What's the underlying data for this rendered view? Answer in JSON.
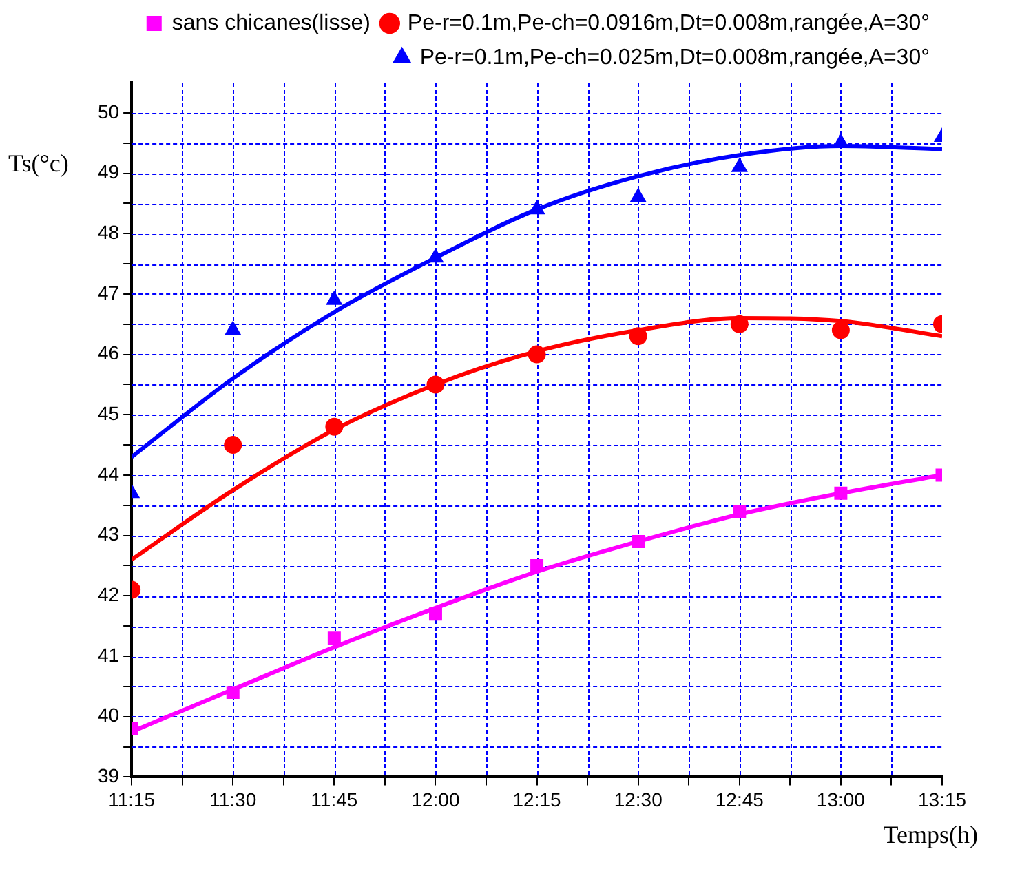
{
  "chart_data": {
    "type": "scatter",
    "xlabel": "Temps(h)",
    "ylabel": "Ts(°c)",
    "x": [
      11.25,
      11.5,
      11.75,
      12.0,
      12.25,
      12.5,
      12.75,
      13.0,
      13.25
    ],
    "xlim": [
      11.25,
      13.25
    ],
    "xticks": [
      {
        "value": 11.25,
        "label": "11:15"
      },
      {
        "value": 11.375,
        "label": null
      },
      {
        "value": 11.5,
        "label": "11:30"
      },
      {
        "value": 11.625,
        "label": null
      },
      {
        "value": 11.75,
        "label": "11:45"
      },
      {
        "value": 11.875,
        "label": null
      },
      {
        "value": 12.0,
        "label": "12:00"
      },
      {
        "value": 12.125,
        "label": null
      },
      {
        "value": 12.25,
        "label": "12:15"
      },
      {
        "value": 12.375,
        "label": null
      },
      {
        "value": 12.5,
        "label": "12:30"
      },
      {
        "value": 12.625,
        "label": null
      },
      {
        "value": 12.75,
        "label": "12:45"
      },
      {
        "value": 12.875,
        "label": null
      },
      {
        "value": 13.0,
        "label": "13:00"
      },
      {
        "value": 13.125,
        "label": null
      },
      {
        "value": 13.25,
        "label": "13:15"
      }
    ],
    "ylim": [
      39,
      50.5
    ],
    "yticks": [
      39,
      {
        "value": 39.5,
        "label": null
      },
      40,
      {
        "value": 40.5,
        "label": null
      },
      41,
      {
        "value": 41.5,
        "label": null
      },
      42,
      {
        "value": 42.5,
        "label": null
      },
      43,
      {
        "value": 43.5,
        "label": null
      },
      44,
      {
        "value": 44.5,
        "label": null
      },
      45,
      {
        "value": 45.5,
        "label": null
      },
      46,
      {
        "value": 46.5,
        "label": null
      },
      47,
      {
        "value": 47.5,
        "label": null
      },
      48,
      {
        "value": 48.5,
        "label": null
      },
      49,
      {
        "value": 49.5,
        "label": null
      },
      50
    ],
    "grid": true,
    "legend": "top right",
    "series": [
      {
        "name": "sans chicanes(lisse)",
        "marker": "square",
        "color": "#ff00ff",
        "values": [
          39.8,
          40.4,
          41.3,
          41.7,
          42.5,
          42.9,
          43.4,
          43.7,
          44.0
        ]
      },
      {
        "name": "Pe-r=0.1m,Pe-ch=0.0916m,Dt=0.008m,rangée,A=30°",
        "marker": "circle",
        "color": "#ff0000",
        "values": [
          42.1,
          44.5,
          44.8,
          45.5,
          46.0,
          46.3,
          46.5,
          46.4,
          46.5
        ]
      },
      {
        "name": "Pe-r=0.1m,Pe-ch=0.025m,Dt=0.008m,rangée,A=30°",
        "marker": "triangle",
        "color": "#0000ff",
        "values": [
          43.7,
          46.4,
          46.9,
          47.6,
          48.4,
          48.6,
          49.1,
          49.5,
          49.6
        ]
      },
      {
        "type": "line",
        "marker": "none",
        "color": "#ff00ff",
        "values": [
          39.75,
          40.45,
          41.15,
          41.8,
          42.4,
          42.9,
          43.35,
          43.7,
          44.0
        ]
      },
      {
        "type": "line",
        "marker": "none",
        "color": "#ff0000",
        "values": [
          42.6,
          43.75,
          44.75,
          45.5,
          46.05,
          46.4,
          46.6,
          46.55,
          46.3
        ]
      },
      {
        "type": "line",
        "marker": "none",
        "color": "#0000ff",
        "values": [
          44.3,
          45.6,
          46.7,
          47.6,
          48.4,
          48.95,
          49.3,
          49.45,
          49.4
        ]
      }
    ]
  }
}
